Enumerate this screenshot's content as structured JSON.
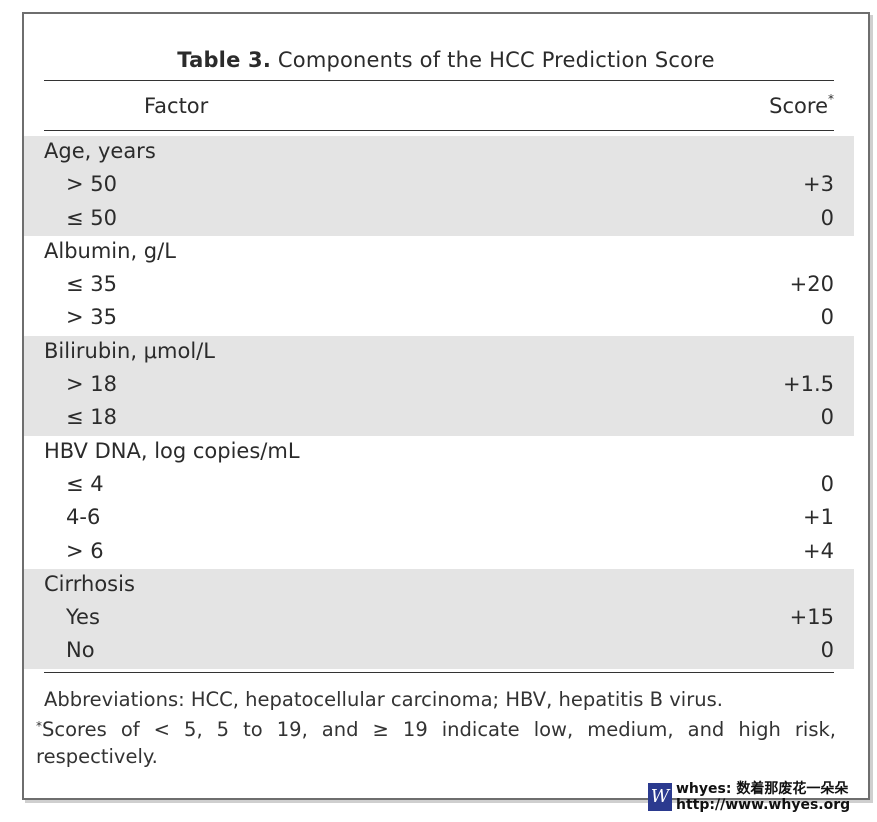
{
  "table": {
    "title_bold": "Table 3.",
    "title_rest": " Components of the HCC Prediction Score",
    "header": {
      "factor": "Factor",
      "score": "Score",
      "score_mark": "*"
    },
    "groups": [
      {
        "label": "Age, years",
        "rows": [
          {
            "label": "> 50",
            "value": "+3"
          },
          {
            "label": "≤ 50",
            "value": "0"
          }
        ]
      },
      {
        "label": "Albumin, g/L",
        "rows": [
          {
            "label": "≤ 35",
            "value": "+20"
          },
          {
            "label": "> 35",
            "value": "0"
          }
        ]
      },
      {
        "label": "Bilirubin, μmol/L",
        "rows": [
          {
            "label": "> 18",
            "value": "+1.5"
          },
          {
            "label": "≤ 18",
            "value": "0"
          }
        ]
      },
      {
        "label": "HBV DNA, log copies/mL",
        "rows": [
          {
            "label": "≤ 4",
            "value": "0"
          },
          {
            "label": "4-6",
            "value": "+1"
          },
          {
            "label": "> 6",
            "value": "+4"
          }
        ]
      },
      {
        "label": "Cirrhosis",
        "rows": [
          {
            "label": "Yes",
            "value": "+15"
          },
          {
            "label": "No",
            "value": "0"
          }
        ]
      }
    ]
  },
  "footnotes": {
    "abbreviations": "Abbreviations: HCC, hepatocellular carcinoma; HBV, hepatitis B virus.",
    "score_mark": "*",
    "scores": "Scores of < 5, 5 to 19, and ≥ 19 indicate low, medium, and high risk, respectively."
  },
  "watermark": {
    "logo": "W",
    "line1": "whyes: 数着那废花一朵朵",
    "line2": "http://www.whyes.org"
  }
}
